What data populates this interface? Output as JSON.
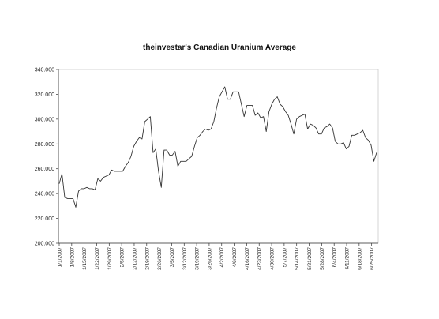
{
  "chart_data": {
    "type": "line",
    "title": "theinvestar's Canadian Uranium Average",
    "xlabel": "",
    "ylabel": "",
    "ylim": [
      200,
      340
    ],
    "y_ticks": [
      "200.000",
      "220.000",
      "240.000",
      "260.000",
      "280.000",
      "300.000",
      "320.000",
      "340.000"
    ],
    "x_tick_labels": [
      "1/1/2007",
      "1/8/2007",
      "1/15/2007",
      "1/22/2007",
      "1/29/2007",
      "2/5/2007",
      "2/12/2007",
      "2/19/2007",
      "2/26/2007",
      "3/5/2007",
      "3/12/2007",
      "3/19/2007",
      "3/26/2007",
      "4/2/2007",
      "4/9/2007",
      "4/16/2007",
      "4/23/2007",
      "4/30/2007",
      "5/7/2007",
      "5/14/2007",
      "5/21/2007",
      "5/28/2007",
      "6/4/2007",
      "6/11/2007",
      "6/18/2007",
      "6/25/2007"
    ],
    "grid": false,
    "series": [
      {
        "name": "",
        "color": "#333333",
        "values": [
          248,
          256,
          237,
          236,
          236,
          236,
          229,
          242,
          244,
          244,
          245,
          244,
          244,
          243,
          252,
          250,
          253,
          254,
          255,
          259,
          258,
          258,
          258,
          258,
          262,
          265,
          270,
          278,
          282,
          285,
          284,
          298,
          300,
          302,
          273,
          276,
          258,
          245,
          275,
          275,
          271,
          271,
          274,
          262,
          266,
          266,
          266,
          268,
          270,
          278,
          285,
          287,
          290,
          292,
          291,
          292,
          298,
          309,
          318,
          322,
          326,
          316,
          316,
          322,
          322,
          322,
          312,
          302,
          311,
          311,
          311,
          303,
          305,
          301,
          302,
          290,
          306,
          312,
          316,
          318,
          312,
          310,
          306,
          303,
          296,
          288,
          300,
          302,
          303,
          304,
          292,
          296,
          295,
          293,
          288,
          288,
          293,
          294,
          296,
          293,
          282,
          280,
          280,
          281,
          276,
          278,
          287,
          287,
          288,
          289,
          291,
          285,
          283,
          279,
          266,
          273
        ]
      }
    ]
  }
}
